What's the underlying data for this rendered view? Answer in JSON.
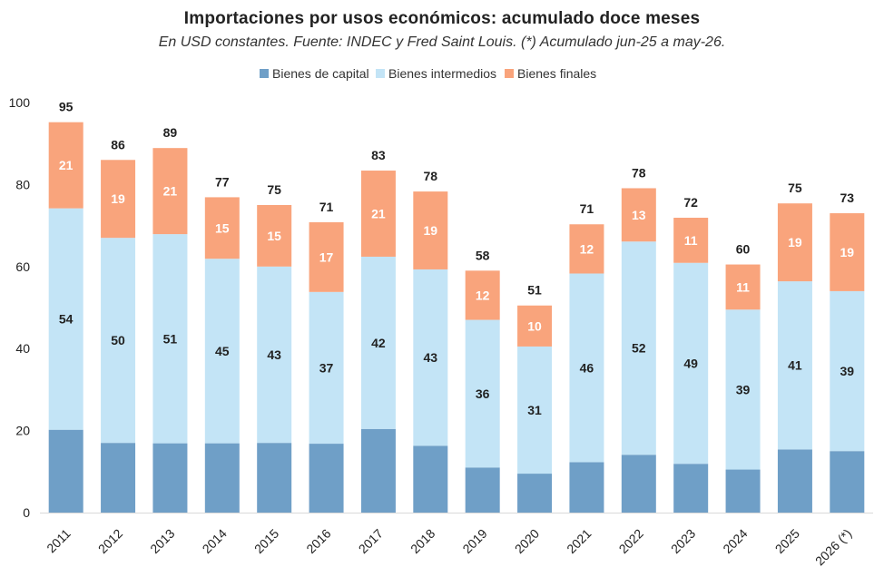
{
  "chart_data": {
    "type": "bar",
    "stacked": true,
    "title": "Importaciones por usos económicos: acumulado doce meses",
    "subtitle": "En USD constantes. Fuente: INDEC y Fred Saint Louis. (*) Acumulado jun-25 a may-26.",
    "xlabel": "",
    "ylabel": "",
    "ylim": [
      0,
      100
    ],
    "yticks": [
      0,
      20,
      40,
      60,
      80,
      100
    ],
    "grid": false,
    "legend_position": "top",
    "categories": [
      "2011",
      "2012",
      "2013",
      "2014",
      "2015",
      "2016",
      "2017",
      "2018",
      "2019",
      "2020",
      "2021",
      "2022",
      "2023",
      "2024",
      "2025",
      "2026 (*)"
    ],
    "series": [
      {
        "name": "Bienes de capital",
        "color": "#6f9fc7",
        "values": [
          20.2,
          17.0,
          16.9,
          16.9,
          17.0,
          16.8,
          20.4,
          16.3,
          11.0,
          9.5,
          12.3,
          14.1,
          11.9,
          10.5,
          15.4,
          15.0
        ],
        "show_labels": false
      },
      {
        "name": "Bienes intermedios",
        "color": "#c3e4f6",
        "values": [
          54,
          50,
          51,
          45,
          43,
          37,
          42,
          43,
          36,
          31,
          46,
          52,
          49,
          39,
          41,
          39
        ],
        "show_labels": true
      },
      {
        "name": "Bienes finales",
        "color": "#f9a47c",
        "values": [
          21,
          19,
          21,
          15,
          15,
          17,
          21,
          19,
          12,
          10,
          12,
          13,
          11,
          11,
          19,
          19
        ],
        "show_labels": true
      }
    ],
    "totals": [
      95,
      86,
      89,
      77,
      75,
      71,
      83,
      78,
      58,
      51,
      71,
      78,
      72,
      60,
      75,
      73
    ]
  }
}
